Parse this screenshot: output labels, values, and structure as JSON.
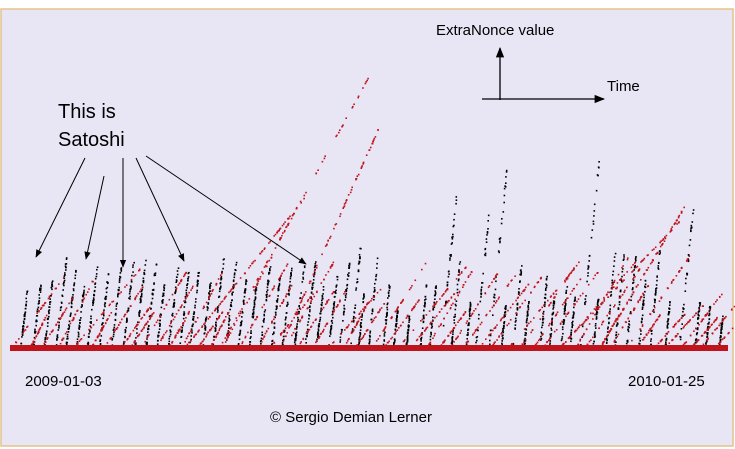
{
  "annotations": {
    "y_label": "ExtraNonce value",
    "x_label": "Time",
    "callout": [
      "This is",
      "Satoshi"
    ]
  },
  "dates": {
    "start": "2009-01-03",
    "end": "2010-01-25"
  },
  "credit": "© Sergio Demian Lerner"
}
